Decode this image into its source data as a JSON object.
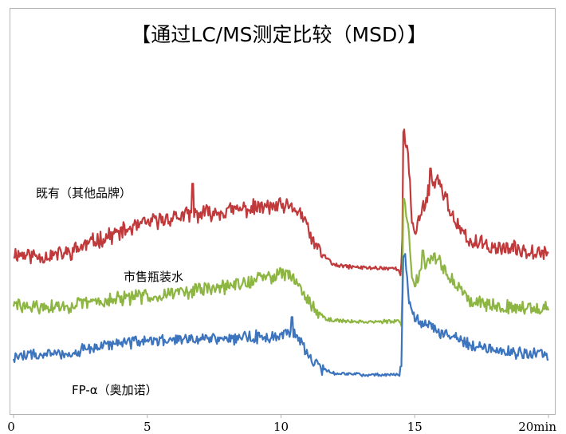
{
  "chart_data": {
    "type": "line",
    "title": "【通过LC/MS测定比较（MSD）】",
    "xlabel": "",
    "ylabel": "",
    "xlim": [
      0,
      20
    ],
    "ylim": [
      0,
      100
    ],
    "grid": false,
    "x_ticks": [
      {
        "value": 0,
        "label": "0"
      },
      {
        "value": 5,
        "label": "5"
      },
      {
        "value": 10,
        "label": "10"
      },
      {
        "value": 15,
        "label": "15"
      },
      {
        "value": 20,
        "label": "20min"
      }
    ],
    "colors": [
      "#c0393b",
      "#8db543",
      "#3d74be"
    ],
    "series": [
      {
        "name": "既有（其他品牌）",
        "color": "#c0393b",
        "noise": 2.4,
        "seed": 11,
        "points": [
          [
            0,
            48
          ],
          [
            1,
            47
          ],
          [
            2,
            48
          ],
          [
            3,
            52
          ],
          [
            4,
            55
          ],
          [
            5,
            58
          ],
          [
            6,
            60
          ],
          [
            7,
            61
          ],
          [
            8,
            62
          ],
          [
            9,
            63
          ],
          [
            10,
            63.5
          ],
          [
            10.7,
            62
          ],
          [
            11.3,
            50
          ],
          [
            12,
            44
          ],
          [
            13,
            43.3
          ],
          [
            14.5,
            43
          ],
          [
            14.54,
            53
          ],
          [
            14.6,
            87
          ],
          [
            14.75,
            80
          ],
          [
            14.9,
            58
          ],
          [
            15,
            55
          ],
          [
            15.5,
            68
          ],
          [
            15.8,
            73
          ],
          [
            16.1,
            68
          ],
          [
            16.5,
            58
          ],
          [
            17,
            52
          ],
          [
            18,
            50
          ],
          [
            19,
            49
          ],
          [
            20,
            49
          ]
        ],
        "spikes": [
          [
            6.7,
            71
          ],
          [
            14.6,
            88
          ],
          [
            15.6,
            76
          ]
        ]
      },
      {
        "name": "市售瓶装水",
        "color": "#8db543",
        "noise": 2.1,
        "seed": 29,
        "points": [
          [
            0,
            31
          ],
          [
            1,
            30
          ],
          [
            2,
            30.5
          ],
          [
            3,
            32
          ],
          [
            4,
            33
          ],
          [
            5,
            34
          ],
          [
            6,
            35
          ],
          [
            7,
            36
          ],
          [
            8,
            37
          ],
          [
            9,
            39
          ],
          [
            10,
            41.5
          ],
          [
            10.5,
            40
          ],
          [
            11,
            33
          ],
          [
            11.5,
            27
          ],
          [
            12,
            25.8
          ],
          [
            13,
            25.5
          ],
          [
            14.5,
            25.5
          ],
          [
            14.54,
            34
          ],
          [
            14.6,
            65
          ],
          [
            14.75,
            58
          ],
          [
            14.9,
            40
          ],
          [
            15,
            38
          ],
          [
            15.5,
            47
          ],
          [
            15.9,
            46
          ],
          [
            16.3,
            40
          ],
          [
            17,
            33
          ],
          [
            18,
            31
          ],
          [
            19,
            30
          ],
          [
            20,
            30
          ]
        ],
        "spikes": [
          [
            14.6,
            66
          ],
          [
            15.3,
            49
          ]
        ]
      },
      {
        "name": "FP-α（奥加诺）",
        "color": "#3d74be",
        "noise": 1.8,
        "seed": 47,
        "points": [
          [
            0,
            14
          ],
          [
            1,
            14.5
          ],
          [
            2,
            15
          ],
          [
            3,
            17
          ],
          [
            4,
            18.5
          ],
          [
            5,
            19
          ],
          [
            6,
            19.5
          ],
          [
            7,
            20
          ],
          [
            8,
            20
          ],
          [
            9,
            20.5
          ],
          [
            10,
            20.5
          ],
          [
            10.5,
            22
          ],
          [
            11,
            15
          ],
          [
            11.5,
            10
          ],
          [
            12,
            8.5
          ],
          [
            13,
            8
          ],
          [
            14.45,
            8
          ],
          [
            14.5,
            10
          ],
          [
            14.55,
            40
          ],
          [
            14.65,
            47
          ],
          [
            14.8,
            32
          ],
          [
            15,
            27
          ],
          [
            15.5,
            24
          ],
          [
            16,
            22
          ],
          [
            17,
            18
          ],
          [
            18,
            16.5
          ],
          [
            19,
            15
          ],
          [
            20,
            14.5
          ]
        ],
        "spikes": [
          [
            10.4,
            27
          ],
          [
            14.6,
            47
          ]
        ]
      }
    ]
  }
}
